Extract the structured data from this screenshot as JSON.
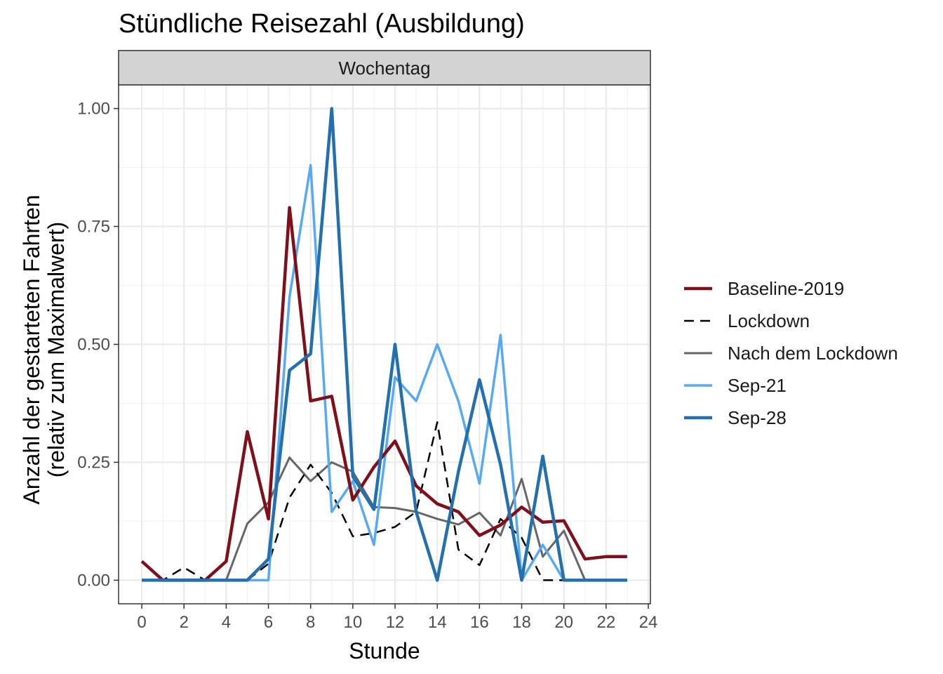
{
  "chart_data": {
    "type": "line",
    "title": "Stündliche Reisezahl (Ausbildung)",
    "facet": "Wochentag",
    "xlabel": "Stunde",
    "ylabel_lines": [
      "Anzahl der gestarteten Fahrten",
      "(relativ zum Maximalwert)"
    ],
    "xlim": [
      -1.1,
      24.1
    ],
    "ylim": [
      -0.05,
      1.05
    ],
    "xticks": [
      0,
      2,
      4,
      6,
      8,
      10,
      12,
      14,
      16,
      18,
      20,
      22,
      24
    ],
    "xtick_labels": [
      "0",
      "2",
      "4",
      "6",
      "8",
      "10",
      "12",
      "14",
      "16",
      "18",
      "20",
      "22",
      "24"
    ],
    "yticks": [
      0,
      0.25,
      0.5,
      0.75,
      1.0
    ],
    "ytick_labels": [
      "0.00",
      "0.25",
      "0.50",
      "0.75",
      "1.00"
    ],
    "grid": true,
    "legend_position": "right",
    "x": [
      0,
      1,
      2,
      3,
      4,
      5,
      6,
      7,
      8,
      9,
      10,
      11,
      12,
      13,
      14,
      15,
      16,
      17,
      18,
      19,
      20,
      21,
      22,
      23
    ],
    "series": [
      {
        "name": "Nach dem Lockdown",
        "color": "#666666",
        "style": "solid",
        "width": 3,
        "values": [
          0,
          0,
          0,
          0,
          0,
          0.12,
          0.165,
          0.26,
          0.21,
          0.25,
          0.23,
          0.155,
          0.153,
          0.145,
          0.13,
          0.118,
          0.143,
          0.095,
          0.215,
          0.05,
          0.105,
          0,
          0,
          0
        ]
      },
      {
        "name": "Lockdown",
        "color": "#000000",
        "style": "dashed",
        "width": 2.5,
        "values": [
          0,
          0,
          0.027,
          0,
          0,
          0,
          0.035,
          0.175,
          0.245,
          0.185,
          0.093,
          0.1,
          0.113,
          0.145,
          0.335,
          0.065,
          0.032,
          0.13,
          0.09,
          0,
          0,
          0,
          0,
          0
        ]
      },
      {
        "name": "Sep-21",
        "color": "#56a9f5",
        "style": "solid",
        "width": 3.5,
        "values": [
          0,
          0,
          0,
          0,
          0,
          0,
          0,
          0.6,
          0.88,
          0.145,
          0.21,
          0.075,
          0.43,
          0.38,
          0.5,
          0.38,
          0.205,
          0.52,
          0,
          0.075,
          0,
          0,
          0,
          0
        ]
      },
      {
        "name": "Baseline-2019",
        "color": "#7f1019",
        "style": "solid",
        "width": 4.5,
        "values": [
          0.04,
          0,
          0,
          0,
          0.04,
          0.315,
          0.13,
          0.79,
          0.38,
          0.39,
          0.17,
          0.24,
          0.295,
          0.2,
          0.162,
          0.145,
          0.095,
          0.117,
          0.155,
          0.123,
          0.126,
          0.045,
          0.05,
          0.05
        ]
      },
      {
        "name": "Sep-28",
        "color": "#2270ae",
        "style": "solid",
        "width": 4.5,
        "values": [
          0,
          0,
          0,
          0,
          0,
          0,
          0.045,
          0.445,
          0.48,
          1.0,
          0.22,
          0.15,
          0.5,
          0.145,
          0,
          0.23,
          0.425,
          0.245,
          0,
          0.263,
          0,
          0,
          0,
          0
        ]
      }
    ],
    "legend_order": [
      "Baseline-2019",
      "Lockdown",
      "Nach dem Lockdown",
      "Sep-21",
      "Sep-28"
    ]
  }
}
